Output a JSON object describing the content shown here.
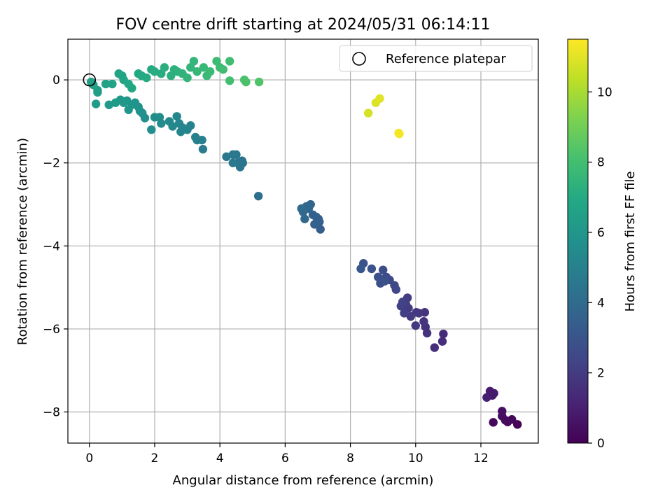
{
  "chart_data": {
    "type": "scatter",
    "title": "FOV centre drift starting at 2024/05/31 06:14:11",
    "xlabel": "Angular distance from reference (arcmin)",
    "ylabel": "Rotation from reference (arcmin)",
    "xlim": [
      -0.66,
      13.76
    ],
    "ylim": [
      -8.75,
      0.98
    ],
    "xticks": [
      0,
      2,
      4,
      6,
      8,
      10,
      12
    ],
    "yticks": [
      0,
      -2,
      -4,
      -6,
      -8
    ],
    "grid": true,
    "legend": {
      "placement": "top-right",
      "entries": [
        "Reference platepar"
      ]
    },
    "reference_point": {
      "x": 0,
      "y": 0
    },
    "colorbar": {
      "label": "Hours from first FF file",
      "colormap": "viridis",
      "range": [
        0,
        11.5
      ],
      "ticks": [
        0,
        2,
        4,
        6,
        8,
        10
      ]
    },
    "points": [
      [
        13.12,
        -8.3,
        0.05
      ],
      [
        12.95,
        -8.18,
        0.2
      ],
      [
        12.82,
        -8.24,
        0.3
      ],
      [
        12.75,
        -8.2,
        0.35
      ],
      [
        12.65,
        -8.1,
        0.4
      ],
      [
        12.65,
        -7.98,
        0.45
      ],
      [
        12.38,
        -8.25,
        0.25
      ],
      [
        12.35,
        -7.6,
        0.8
      ],
      [
        12.28,
        -7.5,
        0.9
      ],
      [
        12.18,
        -7.65,
        1.0
      ],
      [
        12.4,
        -7.55,
        0.85
      ],
      [
        10.85,
        -6.12,
        1.4
      ],
      [
        10.82,
        -6.3,
        1.5
      ],
      [
        10.58,
        -6.45,
        1.55
      ],
      [
        10.35,
        -6.1,
        1.6
      ],
      [
        10.3,
        -5.95,
        1.65
      ],
      [
        10.28,
        -5.6,
        1.7
      ],
      [
        10.25,
        -5.82,
        1.75
      ],
      [
        10.1,
        -5.62,
        1.8
      ],
      [
        10.02,
        -5.6,
        1.85
      ],
      [
        10.0,
        -5.92,
        1.9
      ],
      [
        9.85,
        -5.7,
        1.95
      ],
      [
        9.78,
        -5.5,
        2.0
      ],
      [
        9.75,
        -5.25,
        2.05
      ],
      [
        9.7,
        -5.4,
        2.1
      ],
      [
        9.65,
        -5.62,
        2.15
      ],
      [
        9.55,
        -5.45,
        2.2
      ],
      [
        9.6,
        -5.35,
        2.25
      ],
      [
        9.4,
        -5.05,
        2.4
      ],
      [
        9.35,
        -4.95,
        2.5
      ],
      [
        9.2,
        -4.82,
        2.55
      ],
      [
        9.1,
        -4.75,
        2.6
      ],
      [
        9.0,
        -4.58,
        2.7
      ],
      [
        8.92,
        -4.9,
        2.75
      ],
      [
        8.85,
        -4.75,
        2.8
      ],
      [
        9.05,
        -4.85,
        2.85
      ],
      [
        8.65,
        -4.55,
        2.9
      ],
      [
        8.4,
        -4.42,
        3.0
      ],
      [
        8.32,
        -4.55,
        3.05
      ],
      [
        7.08,
        -3.6,
        3.4
      ],
      [
        7.05,
        -3.42,
        3.45
      ],
      [
        7.02,
        -3.35,
        3.5
      ],
      [
        6.95,
        -3.3,
        3.55
      ],
      [
        6.9,
        -3.48,
        3.6
      ],
      [
        6.85,
        -3.25,
        3.65
      ],
      [
        6.78,
        -3.0,
        3.7
      ],
      [
        6.72,
        -3.1,
        3.75
      ],
      [
        6.65,
        -3.05,
        3.8
      ],
      [
        6.6,
        -3.35,
        3.85
      ],
      [
        6.55,
        -3.18,
        3.9
      ],
      [
        6.5,
        -3.1,
        3.95
      ],
      [
        5.18,
        -2.8,
        4.2
      ],
      [
        4.7,
        -2.0,
        4.3
      ],
      [
        4.68,
        -1.95,
        4.35
      ],
      [
        4.62,
        -2.1,
        4.4
      ],
      [
        4.55,
        -2.0,
        4.45
      ],
      [
        4.5,
        -1.8,
        4.5
      ],
      [
        4.4,
        -1.8,
        4.55
      ],
      [
        4.4,
        -2.0,
        4.6
      ],
      [
        4.2,
        -1.85,
        4.65
      ],
      [
        3.48,
        -1.67,
        4.8
      ],
      [
        3.45,
        -1.45,
        4.9
      ],
      [
        3.3,
        -1.45,
        4.95
      ],
      [
        3.25,
        -1.38,
        5.0
      ],
      [
        3.1,
        -1.1,
        5.05
      ],
      [
        3.0,
        -1.2,
        5.1
      ],
      [
        2.85,
        -1.15,
        5.15
      ],
      [
        2.8,
        -1.25,
        5.2
      ],
      [
        2.75,
        -1.05,
        5.25
      ],
      [
        2.68,
        -0.88,
        5.3
      ],
      [
        2.55,
        -1.12,
        5.35
      ],
      [
        2.45,
        -1.0,
        5.4
      ],
      [
        2.2,
        -1.05,
        5.5
      ],
      [
        2.15,
        -0.9,
        5.55
      ],
      [
        2.0,
        -0.9,
        5.6
      ],
      [
        1.9,
        -1.2,
        5.65
      ],
      [
        1.7,
        -0.92,
        5.7
      ],
      [
        1.62,
        -0.8,
        5.75
      ],
      [
        1.55,
        -0.75,
        5.8
      ],
      [
        1.5,
        -0.65,
        5.85
      ],
      [
        1.4,
        -0.55,
        5.9
      ],
      [
        1.3,
        -0.6,
        5.95
      ],
      [
        1.2,
        -0.72,
        6.0
      ],
      [
        1.15,
        -0.5,
        6.05
      ],
      [
        1.05,
        -0.55,
        6.1
      ],
      [
        0.95,
        -0.48,
        6.15
      ],
      [
        0.6,
        -0.6,
        6.2
      ],
      [
        0.8,
        -0.55,
        6.25
      ],
      [
        0.2,
        -0.58,
        6.3
      ],
      [
        0.25,
        -0.25,
        6.35
      ],
      [
        0.25,
        -0.3,
        6.4
      ],
      [
        0.12,
        -0.12,
        6.45
      ],
      [
        0.05,
        -0.05,
        6.5
      ],
      [
        0.5,
        -0.1,
        6.55
      ],
      [
        0.7,
        -0.1,
        6.6
      ],
      [
        0.9,
        0.15,
        6.65
      ],
      [
        1.0,
        0.1,
        6.7
      ],
      [
        1.05,
        0.0,
        6.75
      ],
      [
        1.2,
        -0.1,
        6.8
      ],
      [
        1.3,
        -0.2,
        6.85
      ],
      [
        1.5,
        0.15,
        6.9
      ],
      [
        1.6,
        0.1,
        6.95
      ],
      [
        1.75,
        0.05,
        7.0
      ],
      [
        1.9,
        0.25,
        7.05
      ],
      [
        2.0,
        0.2,
        7.1
      ],
      [
        2.2,
        0.15,
        7.15
      ],
      [
        2.3,
        0.3,
        7.2
      ],
      [
        2.5,
        0.1,
        7.25
      ],
      [
        2.6,
        0.25,
        7.3
      ],
      [
        2.7,
        0.2,
        7.35
      ],
      [
        2.85,
        0.15,
        7.4
      ],
      [
        3.0,
        0.05,
        7.45
      ],
      [
        3.1,
        0.3,
        7.5
      ],
      [
        3.2,
        0.45,
        7.55
      ],
      [
        3.3,
        0.2,
        7.6
      ],
      [
        3.5,
        0.3,
        7.65
      ],
      [
        3.6,
        0.1,
        7.7
      ],
      [
        3.7,
        0.2,
        7.75
      ],
      [
        3.9,
        0.45,
        7.8
      ],
      [
        4.0,
        0.3,
        7.85
      ],
      [
        4.1,
        0.25,
        7.9
      ],
      [
        4.3,
        0.45,
        7.95
      ],
      [
        4.3,
        -0.02,
        8.0
      ],
      [
        4.75,
        0.0,
        8.15
      ],
      [
        4.8,
        -0.05,
        8.2
      ],
      [
        5.2,
        -0.05,
        8.3
      ],
      [
        8.55,
        -0.8,
        10.8
      ],
      [
        8.78,
        -0.55,
        10.9
      ],
      [
        8.9,
        -0.45,
        11.0
      ],
      [
        9.48,
        -1.28,
        11.3
      ],
      [
        9.5,
        -1.3,
        11.35
      ]
    ]
  }
}
